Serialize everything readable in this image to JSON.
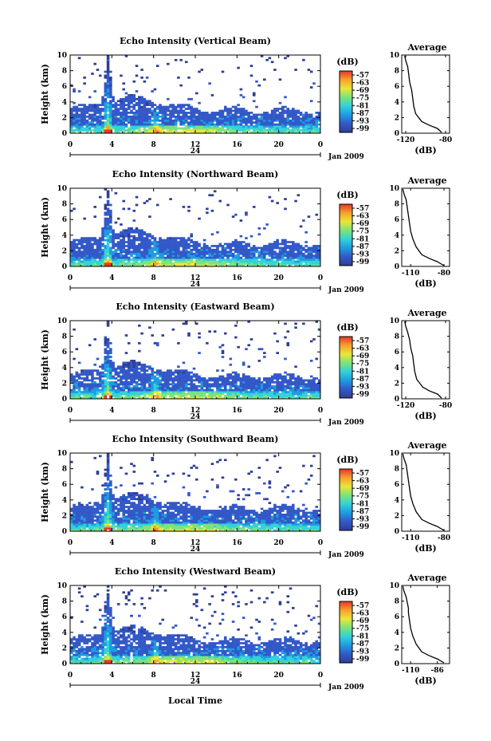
{
  "chart_data": [
    {
      "type": "heatmap",
      "title": "Echo Intensity (Vertical Beam)",
      "ylabel": "Height (km)",
      "xlim": [
        0,
        24
      ],
      "ylim": [
        0,
        10
      ],
      "x_ticks": [
        "0",
        "4",
        "8",
        "12",
        "16",
        "20",
        "0"
      ],
      "y_ticks": [
        "0",
        "2",
        "4",
        "6",
        "8",
        "10"
      ],
      "day_label": "24",
      "date_label": "Jan 2009",
      "colorbar": {
        "unit": "(dB)",
        "levels": [
          "-57",
          "-63",
          "-69",
          "-75",
          "-81",
          "-87",
          "-93",
          "-99"
        ]
      },
      "average": {
        "title": "Average",
        "xlabel": "(dB)",
        "x_ticks": [
          "-120",
          "-80"
        ],
        "y_ticks": [
          "0",
          "2",
          "4",
          "6",
          "8",
          "10"
        ],
        "xlim": [
          -124,
          -76
        ],
        "profile": [
          [
            -84,
            0.1
          ],
          [
            -88,
            0.6
          ],
          [
            -96,
            1.0
          ],
          [
            -104,
            1.5
          ],
          [
            -110,
            2.5
          ],
          [
            -112,
            3.5
          ],
          [
            -113,
            4.5
          ],
          [
            -114,
            5.5
          ],
          [
            -116,
            6.5
          ],
          [
            -117,
            7.5
          ],
          [
            -118,
            8.5
          ],
          [
            -120,
            9.3
          ],
          [
            -121,
            9.9
          ]
        ]
      }
    },
    {
      "type": "heatmap",
      "title": "Echo Intensity (Northward Beam)",
      "ylabel": "Height (km)",
      "xlim": [
        0,
        24
      ],
      "ylim": [
        0,
        10
      ],
      "x_ticks": [
        "0",
        "4",
        "8",
        "12",
        "16",
        "20",
        "0"
      ],
      "y_ticks": [
        "0",
        "2",
        "4",
        "6",
        "8",
        "10"
      ],
      "day_label": "24",
      "date_label": "Jan 2009",
      "colorbar": {
        "unit": "(dB)",
        "levels": [
          "-57",
          "-63",
          "-69",
          "-75",
          "-81",
          "-87",
          "-93",
          "-99"
        ]
      },
      "average": {
        "title": "Average",
        "xlabel": "(dB)",
        "x_ticks": [
          "-110",
          "-80"
        ],
        "y_ticks": [
          "0",
          "2",
          "4",
          "6",
          "8",
          "10"
        ],
        "xlim": [
          -118,
          -75
        ],
        "profile": [
          [
            -80,
            0.1
          ],
          [
            -86,
            0.6
          ],
          [
            -93,
            1.0
          ],
          [
            -100,
            1.5
          ],
          [
            -105,
            2.5
          ],
          [
            -108,
            3.5
          ],
          [
            -110,
            4.5
          ],
          [
            -111,
            5.5
          ],
          [
            -112,
            6.5
          ],
          [
            -113,
            7.5
          ],
          [
            -114,
            8.5
          ],
          [
            -116,
            9.3
          ],
          [
            -117,
            9.9
          ]
        ]
      }
    },
    {
      "type": "heatmap",
      "title": "Echo Intensity (Eastward Beam)",
      "ylabel": "Height (km)",
      "xlim": [
        0,
        24
      ],
      "ylim": [
        0,
        10
      ],
      "x_ticks": [
        "0",
        "4",
        "8",
        "12",
        "16",
        "20",
        "0"
      ],
      "y_ticks": [
        "0",
        "2",
        "4",
        "6",
        "8",
        "10"
      ],
      "day_label": "24",
      "date_label": "Jan 2009",
      "colorbar": {
        "unit": "(dB)",
        "levels": [
          "-57",
          "-63",
          "-69",
          "-75",
          "-81",
          "-87",
          "-93",
          "-99"
        ]
      },
      "average": {
        "title": "Average",
        "xlabel": "(dB)",
        "x_ticks": [
          "-120",
          "-80"
        ],
        "y_ticks": [
          "0",
          "2",
          "4",
          "6",
          "8",
          "10"
        ],
        "xlim": [
          -124,
          -76
        ],
        "profile": [
          [
            -84,
            0.1
          ],
          [
            -88,
            0.6
          ],
          [
            -96,
            1.0
          ],
          [
            -103,
            1.5
          ],
          [
            -109,
            2.5
          ],
          [
            -111,
            3.5
          ],
          [
            -112,
            4.5
          ],
          [
            -113,
            5.5
          ],
          [
            -115,
            6.5
          ],
          [
            -116,
            7.5
          ],
          [
            -118,
            8.5
          ],
          [
            -120,
            9.3
          ],
          [
            -121,
            9.9
          ]
        ]
      }
    },
    {
      "type": "heatmap",
      "title": "Echo Intensity (Southward Beam)",
      "ylabel": "Height (km)",
      "xlim": [
        0,
        24
      ],
      "ylim": [
        0,
        10
      ],
      "x_ticks": [
        "0",
        "4",
        "8",
        "12",
        "16",
        "20",
        "0"
      ],
      "y_ticks": [
        "0",
        "2",
        "4",
        "6",
        "8",
        "10"
      ],
      "day_label": "24",
      "date_label": "Jan 2009",
      "colorbar": {
        "unit": "(dB)",
        "levels": [
          "-57",
          "-63",
          "-69",
          "-75",
          "-81",
          "-87",
          "-93",
          "-99"
        ]
      },
      "average": {
        "title": "Average",
        "xlabel": "(dB)",
        "x_ticks": [
          "-110",
          "-80"
        ],
        "y_ticks": [
          "0",
          "2",
          "4",
          "6",
          "8",
          "10"
        ],
        "xlim": [
          -118,
          -75
        ],
        "profile": [
          [
            -80,
            0.1
          ],
          [
            -86,
            0.6
          ],
          [
            -93,
            1.0
          ],
          [
            -100,
            1.5
          ],
          [
            -105,
            2.5
          ],
          [
            -108,
            3.5
          ],
          [
            -110,
            4.5
          ],
          [
            -111,
            5.5
          ],
          [
            -112,
            6.5
          ],
          [
            -113,
            7.5
          ],
          [
            -114,
            8.5
          ],
          [
            -116,
            9.3
          ],
          [
            -117,
            9.9
          ]
        ]
      }
    },
    {
      "type": "heatmap",
      "title": "Echo Intensity (Westward Beam)",
      "ylabel": "Height (km)",
      "xlabel": "Local Time",
      "xlim": [
        0,
        24
      ],
      "ylim": [
        0,
        10
      ],
      "x_ticks": [
        "0",
        "4",
        "8",
        "12",
        "16",
        "20",
        "0"
      ],
      "y_ticks": [
        "0",
        "2",
        "4",
        "6",
        "8",
        "10"
      ],
      "day_label": "24",
      "date_label": "Jan 2009",
      "colorbar": {
        "unit": "(dB)",
        "levels": [
          "-57",
          "-63",
          "-69",
          "-75",
          "-81",
          "-87",
          "-93",
          "-99"
        ]
      },
      "average": {
        "title": "Average",
        "xlabel": "(dB)",
        "x_ticks": [
          "-110",
          "-86"
        ],
        "y_ticks": [
          "0",
          "2",
          "4",
          "6",
          "8",
          "10"
        ],
        "xlim": [
          -118,
          -75
        ],
        "profile": [
          [
            -80,
            0.1
          ],
          [
            -86,
            0.6
          ],
          [
            -93,
            1.0
          ],
          [
            -100,
            1.5
          ],
          [
            -105,
            2.5
          ],
          [
            -108,
            3.5
          ],
          [
            -110,
            4.5
          ],
          [
            -111,
            5.5
          ],
          [
            -112,
            6.5
          ],
          [
            -112,
            7.1
          ],
          [
            -114,
            8.5
          ],
          [
            -116,
            9.3
          ],
          [
            -117,
            9.9
          ]
        ]
      }
    }
  ],
  "colors": {
    "stops": [
      "#2f3f91",
      "#3358c8",
      "#1f9be0",
      "#33d1d8",
      "#7be37a",
      "#e9e639",
      "#f6a12e",
      "#e8342a"
    ],
    "axis": "#000000",
    "background": "#ffffff"
  }
}
